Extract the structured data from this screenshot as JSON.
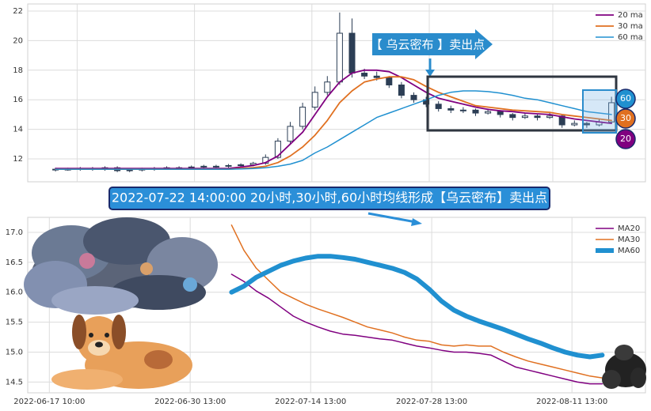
{
  "chart_data": [
    {
      "type": "candlestick",
      "x": [
        4.5,
        6.5,
        8.5,
        10.5,
        12.5,
        14.5,
        16.5,
        18.5,
        20.5,
        22.5,
        24.5,
        26.5,
        28.5,
        30.5,
        32.5,
        34.5,
        36.5,
        38.5,
        40.5,
        42.5,
        44.5,
        46.5,
        48.5,
        50.5,
        52.5,
        54.5,
        56.5,
        58.5,
        60.5,
        62.5,
        64.5,
        66.5,
        68.5,
        70.5,
        72.5,
        74.5,
        76.5,
        78.5,
        80.5,
        82.5,
        84.5,
        86.5,
        88.5,
        90.5,
        92.5,
        94.5
      ],
      "open": [
        11.25,
        11.3,
        11.3,
        11.35,
        11.3,
        11.4,
        11.2,
        11.25,
        11.3,
        11.35,
        11.4,
        11.4,
        11.45,
        11.5,
        11.5,
        11.55,
        11.6,
        11.7,
        12.1,
        13.2,
        14.2,
        15.5,
        16.5,
        17.2,
        20.5,
        17.8,
        17.6,
        17.5,
        17.0,
        16.3,
        16.0,
        15.7,
        15.4,
        15.3,
        15.3,
        15.1,
        15.2,
        15.0,
        14.8,
        14.9,
        14.8,
        14.9,
        14.3,
        14.4,
        14.3,
        14.5
      ],
      "high": [
        11.4,
        11.4,
        11.45,
        11.45,
        11.5,
        11.5,
        11.35,
        11.4,
        11.45,
        11.5,
        11.5,
        11.55,
        11.6,
        11.6,
        11.65,
        11.7,
        11.8,
        12.3,
        13.4,
        14.5,
        15.8,
        16.9,
        17.6,
        21.9,
        21.5,
        18.1,
        17.9,
        17.6,
        17.2,
        16.5,
        16.2,
        15.9,
        15.6,
        15.5,
        15.4,
        15.4,
        15.3,
        15.1,
        15.1,
        15.0,
        15.1,
        15.0,
        14.6,
        14.5,
        14.7,
        16.2
      ],
      "low": [
        11.15,
        11.2,
        11.2,
        11.2,
        11.2,
        11.1,
        11.1,
        11.15,
        11.2,
        11.25,
        11.3,
        11.3,
        11.35,
        11.4,
        11.4,
        11.45,
        11.5,
        11.6,
        12.0,
        13.0,
        14.0,
        15.3,
        16.3,
        17.0,
        17.5,
        17.4,
        17.3,
        16.8,
        16.1,
        15.8,
        15.5,
        15.2,
        15.1,
        15.1,
        14.9,
        15.0,
        14.8,
        14.6,
        14.7,
        14.6,
        14.7,
        14.1,
        14.2,
        14.1,
        14.2,
        14.4
      ],
      "close": [
        11.3,
        11.3,
        11.35,
        11.3,
        11.4,
        11.2,
        11.25,
        11.3,
        11.35,
        11.4,
        11.4,
        11.45,
        11.5,
        11.5,
        11.55,
        11.6,
        11.7,
        12.1,
        13.2,
        14.2,
        15.5,
        16.5,
        17.2,
        20.5,
        17.8,
        17.6,
        17.5,
        17.0,
        16.3,
        16.0,
        15.7,
        15.4,
        15.3,
        15.3,
        15.1,
        15.2,
        15.0,
        14.8,
        14.9,
        14.8,
        14.9,
        14.3,
        14.4,
        14.3,
        14.5,
        15.8
      ],
      "candle_color": "#2c3e55",
      "series": [
        {
          "name": "20 ma",
          "color": "#800080",
          "linewidth": 1.8,
          "values": [
            11.35,
            11.35,
            11.35,
            11.35,
            11.35,
            11.35,
            11.35,
            11.35,
            11.35,
            11.35,
            11.35,
            11.35,
            11.35,
            11.35,
            11.35,
            11.45,
            11.55,
            11.75,
            12.2,
            13.0,
            13.8,
            15.0,
            16.2,
            17.2,
            17.8,
            18.0,
            18.0,
            17.9,
            17.5,
            17.0,
            16.5,
            16.1,
            15.9,
            15.7,
            15.5,
            15.35,
            15.25,
            15.2,
            15.1,
            15.05,
            15.0,
            14.85,
            14.7,
            14.6,
            14.5,
            14.4
          ]
        },
        {
          "name": "30 ma",
          "color": "#e07020",
          "linewidth": 1.8,
          "values": [
            11.3,
            11.3,
            11.3,
            11.3,
            11.3,
            11.3,
            11.3,
            11.3,
            11.3,
            11.3,
            11.3,
            11.3,
            11.3,
            11.3,
            11.3,
            11.35,
            11.4,
            11.5,
            11.75,
            12.2,
            12.8,
            13.6,
            14.6,
            15.8,
            16.6,
            17.2,
            17.4,
            17.55,
            17.55,
            17.35,
            16.9,
            16.5,
            16.2,
            15.9,
            15.6,
            15.5,
            15.4,
            15.3,
            15.25,
            15.2,
            15.15,
            15.0,
            14.9,
            14.8,
            14.7,
            14.6
          ]
        },
        {
          "name": "60 ma",
          "color": "#2090d0",
          "linewidth": 1.5,
          "values": [
            11.3,
            11.3,
            11.3,
            11.3,
            11.3,
            11.3,
            11.3,
            11.3,
            11.3,
            11.3,
            11.3,
            11.3,
            11.3,
            11.3,
            11.3,
            11.32,
            11.35,
            11.4,
            11.5,
            11.65,
            11.9,
            12.4,
            12.8,
            13.3,
            13.8,
            14.3,
            14.8,
            15.1,
            15.4,
            15.7,
            16.0,
            16.3,
            16.5,
            16.6,
            16.6,
            16.55,
            16.45,
            16.3,
            16.1,
            16.0,
            15.8,
            15.6,
            15.4,
            15.2,
            15.1,
            15.0
          ]
        }
      ],
      "xlim": [
        0,
        100
      ],
      "xticks": [
        8,
        27,
        46,
        65,
        85
      ],
      "ylim": [
        10.45,
        22.48
      ],
      "yticks": [
        12,
        14,
        16,
        18,
        20,
        22
      ],
      "grid": true,
      "legend": "upper right",
      "annotations": [
        "【 乌云密布 】卖出点",
        "60",
        "30",
        "20"
      ]
    },
    {
      "type": "line",
      "x": [
        33,
        35,
        37,
        39,
        41,
        43,
        45,
        47,
        49,
        51,
        53,
        55,
        57,
        59,
        61,
        63,
        65,
        67,
        69,
        71,
        73,
        75,
        77,
        79,
        81,
        83,
        85,
        87,
        89,
        91,
        93
      ],
      "series": [
        {
          "name": "MA20",
          "color": "#800080",
          "linewidth": 1.5,
          "values": [
            16.3,
            16.18,
            16.02,
            15.9,
            15.75,
            15.6,
            15.5,
            15.42,
            15.35,
            15.3,
            15.28,
            15.25,
            15.22,
            15.2,
            15.15,
            15.1,
            15.07,
            15.03,
            15.0,
            15.0,
            14.98,
            14.95,
            14.85,
            14.75,
            14.7,
            14.65,
            14.6,
            14.55,
            14.5,
            14.47,
            14.47
          ]
        },
        {
          "name": "MA30",
          "color": "#e07020",
          "linewidth": 1.5,
          "values": [
            17.12,
            16.7,
            16.4,
            16.2,
            16.0,
            15.9,
            15.8,
            15.72,
            15.65,
            15.58,
            15.5,
            15.42,
            15.37,
            15.32,
            15.25,
            15.2,
            15.18,
            15.12,
            15.1,
            15.12,
            15.1,
            15.1,
            15.0,
            14.92,
            14.85,
            14.8,
            14.75,
            14.7,
            14.65,
            14.6,
            14.57
          ]
        },
        {
          "name": "MA60",
          "color": "#2090d0",
          "linewidth": 6,
          "values": [
            16.0,
            16.1,
            16.25,
            16.35,
            16.45,
            16.52,
            16.57,
            16.6,
            16.6,
            16.58,
            16.55,
            16.5,
            16.45,
            16.4,
            16.33,
            16.22,
            16.05,
            15.85,
            15.7,
            15.6,
            15.52,
            15.45,
            15.38,
            15.3,
            15.22,
            15.15,
            15.07,
            15.0,
            14.95,
            14.92,
            14.95
          ]
        }
      ],
      "xlim": [
        0,
        100
      ],
      "xticks": [
        {
          "value": 3.5,
          "label": "2022-06-17 10:00"
        },
        {
          "value": 26.3,
          "label": "2022-06-30 13:00"
        },
        {
          "value": 45.8,
          "label": "2022-07-14 13:00"
        },
        {
          "value": 65.4,
          "label": "2022-07-28 13:00"
        },
        {
          "value": 88.1,
          "label": "2022-08-11 13:00"
        }
      ],
      "ylim": [
        14.32,
        17.25
      ],
      "yticks": [
        14.5,
        {
          "value": 15,
          "label": "15.0"
        },
        15.5,
        {
          "value": 16,
          "label": "16.0"
        },
        16.5,
        {
          "value": 17,
          "label": "17.0"
        }
      ],
      "grid": true,
      "legend": "upper right",
      "annotations": [
        "2022-07-22 14:00:00 20小时,30小时,60小时均线形成【乌云密布】卖出点"
      ]
    }
  ]
}
